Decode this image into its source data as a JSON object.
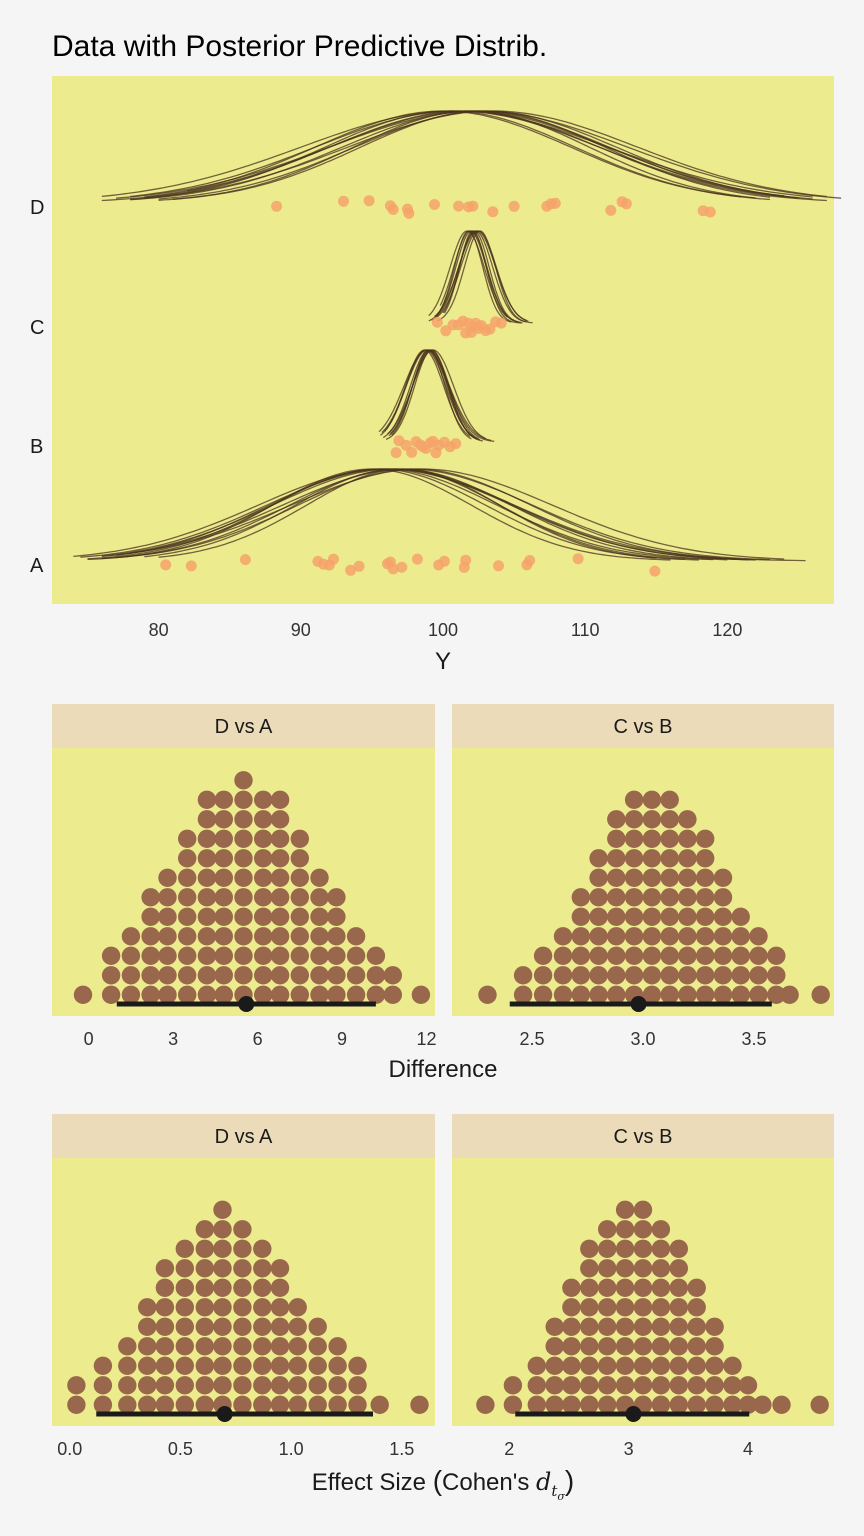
{
  "colors": {
    "panel_bg": "#ecec8f",
    "page_bg": "#f5f5f5",
    "strip_bg": "#ebdbb8",
    "data_point": "#f6a36a",
    "posterior_curve": "#4a331c",
    "dot": "#99674b",
    "interval": "#1a1a1a"
  },
  "chart_data": [
    {
      "type": "scatter",
      "title": "Data with Posterior Predictive Distrib.",
      "xlabel": "Y",
      "ylabel": "",
      "xlim": [
        72.5,
        127.5
      ],
      "xticks": [
        "80",
        "90",
        "100",
        "110",
        "120"
      ],
      "categories": [
        "A",
        "B",
        "C",
        "D"
      ],
      "points": {
        "A": [
          80.5,
          82.3,
          86.1,
          91.2,
          91.6,
          92,
          92.3,
          93.5,
          94.1,
          96.1,
          96.3,
          96.5,
          97.1,
          98.2,
          99.7,
          100.1,
          101.5,
          101.6,
          103.9,
          105.9,
          106.1,
          109.5,
          114.9
        ],
        "B": [
          96.7,
          96.9,
          97.4,
          97.8,
          98.1,
          98.4,
          98.6,
          98.8,
          99.1,
          99.3,
          99.5,
          99.7,
          100.1,
          100.5,
          100.9
        ],
        "C": [
          99.6,
          100.2,
          100.7,
          101.1,
          101.4,
          101.6,
          101.8,
          102.0,
          102.1,
          102.3,
          102.5,
          102.7,
          103.0,
          103.3,
          103.7,
          104.1
        ],
        "D": [
          88.3,
          93.0,
          94.8,
          96.3,
          96.5,
          97.5,
          97.6,
          99.4,
          101.1,
          101.8,
          102.1,
          103.5,
          105.0,
          107.3,
          107.6,
          107.9,
          111.8,
          112.6,
          112.9,
          118.3,
          118.8
        ]
      },
      "posterior_curves": {
        "D": [
          {
            "mu": 101.5,
            "sigma": 9.5,
            "xmin": 76,
            "xmax": 127
          },
          {
            "mu": 102.5,
            "sigma": 10.5,
            "xmin": 77,
            "xmax": 128
          },
          {
            "mu": 100.5,
            "sigma": 8.8,
            "xmin": 78,
            "xmax": 123
          },
          {
            "mu": 103.0,
            "sigma": 9.2,
            "xmin": 80,
            "xmax": 126
          },
          {
            "mu": 101.0,
            "sigma": 10.0,
            "xmin": 78,
            "xmax": 125
          },
          {
            "mu": 102.0,
            "sigma": 8.3,
            "xmin": 81,
            "xmax": 122
          },
          {
            "mu": 100.0,
            "sigma": 9.0,
            "xmin": 79,
            "xmax": 121
          },
          {
            "mu": 103.5,
            "sigma": 10.2,
            "xmin": 79,
            "xmax": 127
          },
          {
            "mu": 101.8,
            "sigma": 9.8,
            "xmin": 82,
            "xmax": 124
          },
          {
            "mu": 102.8,
            "sigma": 8.6,
            "xmin": 80,
            "xmax": 123
          },
          {
            "mu": 100.8,
            "sigma": 10.8,
            "xmin": 76,
            "xmax": 126
          },
          {
            "mu": 102.3,
            "sigma": 9.4,
            "xmin": 78,
            "xmax": 125
          }
        ],
        "C": [
          {
            "mu": 102.0,
            "sigma": 1.1,
            "xmin": 99.0,
            "xmax": 105.5
          },
          {
            "mu": 102.3,
            "sigma": 1.2,
            "xmin": 99.3,
            "xmax": 105.8
          },
          {
            "mu": 101.8,
            "sigma": 1.0,
            "xmin": 99.5,
            "xmax": 104.8
          },
          {
            "mu": 102.5,
            "sigma": 1.25,
            "xmin": 99.2,
            "xmax": 106.0
          },
          {
            "mu": 101.9,
            "sigma": 1.15,
            "xmin": 99.8,
            "xmax": 105.0
          },
          {
            "mu": 102.2,
            "sigma": 1.05,
            "xmin": 100.0,
            "xmax": 105.3
          },
          {
            "mu": 102.6,
            "sigma": 1.1,
            "xmin": 99.6,
            "xmax": 106.3
          },
          {
            "mu": 101.7,
            "sigma": 1.2,
            "xmin": 99.0,
            "xmax": 104.5
          },
          {
            "mu": 102.1,
            "sigma": 0.95,
            "xmin": 100.1,
            "xmax": 105.6
          },
          {
            "mu": 102.4,
            "sigma": 1.3,
            "xmin": 99.4,
            "xmax": 105.9
          }
        ],
        "B": [
          {
            "mu": 99.0,
            "sigma": 1.3,
            "xmin": 95.8,
            "xmax": 102.2
          },
          {
            "mu": 98.8,
            "sigma": 1.4,
            "xmin": 95.6,
            "xmax": 102.6
          },
          {
            "mu": 99.2,
            "sigma": 1.2,
            "xmin": 96.0,
            "xmax": 102.8
          },
          {
            "mu": 98.9,
            "sigma": 1.5,
            "xmin": 95.7,
            "xmax": 103.6
          },
          {
            "mu": 99.1,
            "sigma": 1.25,
            "xmin": 96.2,
            "xmax": 102.4
          },
          {
            "mu": 98.7,
            "sigma": 1.35,
            "xmin": 95.9,
            "xmax": 101.9
          },
          {
            "mu": 99.3,
            "sigma": 1.45,
            "xmin": 96.1,
            "xmax": 103.0
          },
          {
            "mu": 99.0,
            "sigma": 1.15,
            "xmin": 96.4,
            "xmax": 102.0
          },
          {
            "mu": 98.85,
            "sigma": 1.6,
            "xmin": 95.5,
            "xmax": 103.4
          },
          {
            "mu": 99.15,
            "sigma": 1.3,
            "xmin": 96.3,
            "xmax": 102.5
          }
        ],
        "A": [
          {
            "mu": 95.5,
            "sigma": 7.5,
            "xmin": 75,
            "xmax": 118
          },
          {
            "mu": 96.5,
            "sigma": 8.5,
            "xmin": 76,
            "xmax": 122
          },
          {
            "mu": 97.0,
            "sigma": 7.8,
            "xmin": 77,
            "xmax": 120
          },
          {
            "mu": 96.0,
            "sigma": 9.0,
            "xmin": 74,
            "xmax": 125.5
          },
          {
            "mu": 98.0,
            "sigma": 8.2,
            "xmin": 76,
            "xmax": 121
          },
          {
            "mu": 95.0,
            "sigma": 7.0,
            "xmin": 75,
            "xmax": 116
          },
          {
            "mu": 97.5,
            "sigma": 8.8,
            "xmin": 78,
            "xmax": 123
          },
          {
            "mu": 96.8,
            "sigma": 7.2,
            "xmin": 79,
            "xmax": 117
          },
          {
            "mu": 95.8,
            "sigma": 8.0,
            "xmin": 77,
            "xmax": 119
          },
          {
            "mu": 98.5,
            "sigma": 9.2,
            "xmin": 76,
            "xmax": 124
          },
          {
            "mu": 97.2,
            "sigma": 6.8,
            "xmin": 80,
            "xmax": 115
          },
          {
            "mu": 96.2,
            "sigma": 8.6,
            "xmin": 74.5,
            "xmax": 121.5
          }
        ]
      }
    },
    {
      "type": "dotplot",
      "panel": "D vs A",
      "xlim": [
        -1.3,
        12.3
      ],
      "xticks": [
        0,
        3,
        6,
        9,
        12
      ],
      "tick_labels": [
        "0",
        "3",
        "6",
        "9",
        "12"
      ],
      "stack_x": [
        -0.2,
        0.8,
        1.5,
        2.2,
        2.8,
        3.5,
        4.2,
        4.8,
        5.5,
        6.2,
        6.8,
        7.5,
        8.2,
        8.8,
        9.5,
        10.2,
        10.8,
        11.8
      ],
      "stack_counts": [
        1,
        3,
        4,
        6,
        7,
        9,
        11,
        11,
        12,
        11,
        11,
        9,
        7,
        6,
        4,
        3,
        2,
        1
      ],
      "median": 5.6,
      "interval": [
        1.0,
        10.2
      ]
    },
    {
      "type": "dotplot",
      "panel": "C vs B",
      "xlim": [
        2.14,
        3.86
      ],
      "xticks": [
        2.5,
        3.0,
        3.5
      ],
      "tick_labels": [
        "2.5",
        "3.0",
        "3.5"
      ],
      "stack_x": [
        2.3,
        2.46,
        2.55,
        2.64,
        2.72,
        2.8,
        2.88,
        2.96,
        3.04,
        3.12,
        3.2,
        3.28,
        3.36,
        3.44,
        3.52,
        3.6,
        3.66,
        3.8
      ],
      "stack_counts": [
        1,
        2,
        3,
        4,
        6,
        8,
        10,
        11,
        11,
        11,
        10,
        9,
        7,
        5,
        4,
        3,
        1,
        1
      ],
      "median": 2.98,
      "interval": [
        2.4,
        3.58
      ]
    },
    {
      "type": "dotplot",
      "panel": "D vs A",
      "xlim": [
        -0.08,
        1.65
      ],
      "xticks": [
        0.0,
        0.5,
        1.0,
        1.5
      ],
      "tick_labels": [
        "0.0",
        "0.5",
        "1.0",
        "1.5"
      ],
      "stack_x": [
        0.03,
        0.15,
        0.26,
        0.35,
        0.43,
        0.52,
        0.61,
        0.69,
        0.78,
        0.87,
        0.95,
        1.03,
        1.12,
        1.21,
        1.3,
        1.4,
        1.58
      ],
      "stack_counts": [
        2,
        3,
        4,
        6,
        8,
        9,
        10,
        11,
        10,
        9,
        8,
        6,
        5,
        4,
        3,
        1,
        1
      ],
      "median": 0.7,
      "interval": [
        0.12,
        1.37
      ]
    },
    {
      "type": "dotplot",
      "panel": "C vs B",
      "xlim": [
        1.52,
        4.72
      ],
      "xticks": [
        2,
        3,
        4
      ],
      "tick_labels": [
        "2",
        "3",
        "4"
      ],
      "stack_x": [
        1.8,
        2.03,
        2.23,
        2.38,
        2.52,
        2.67,
        2.82,
        2.97,
        3.12,
        3.27,
        3.42,
        3.57,
        3.72,
        3.87,
        4.0,
        4.12,
        4.28,
        4.6
      ],
      "stack_counts": [
        1,
        2,
        3,
        5,
        7,
        9,
        10,
        11,
        11,
        10,
        9,
        7,
        5,
        3,
        2,
        1,
        1,
        1
      ],
      "median": 3.04,
      "interval": [
        2.05,
        4.01
      ]
    }
  ],
  "labels": {
    "diff_xlabel": "Difference",
    "es_xlabel_prefix": "Effect Size ",
    "es_xlabel_paren_open": "(",
    "es_xlabel_body": "Cohen's ",
    "es_xlabel_d": "d",
    "es_xlabel_t": "t",
    "es_xlabel_sigma": "σ",
    "es_xlabel_paren_close": ")"
  }
}
